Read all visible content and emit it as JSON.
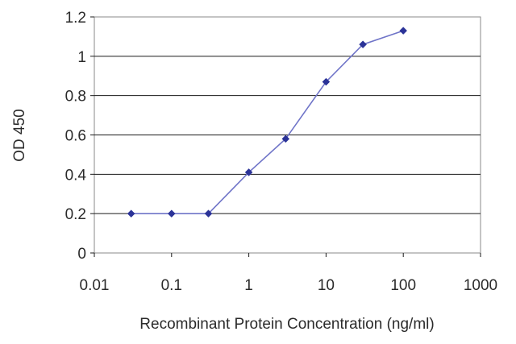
{
  "chart_data": {
    "type": "line",
    "title": "",
    "xlabel": "Recombinant Protein Concentration (ng/ml)",
    "ylabel": "OD 450",
    "x_scale": "log",
    "xlim": [
      0.01,
      1000
    ],
    "ylim": [
      0,
      1.2
    ],
    "x_ticks": [
      "0.01",
      "0.1",
      "1",
      "10",
      "100",
      "1000"
    ],
    "y_ticks": [
      "0",
      "0.2",
      "0.4",
      "0.6",
      "0.8",
      "1",
      "1.2"
    ],
    "grid": "horizontal",
    "legend": "none",
    "series": [
      {
        "x": [
          0.03,
          0.1,
          0.3,
          1,
          3,
          10,
          30,
          100
        ],
        "y": [
          0.2,
          0.2,
          0.2,
          0.41,
          0.58,
          0.87,
          1.06,
          1.13
        ],
        "color": "#2b3398",
        "marker": "diamond"
      }
    ]
  }
}
